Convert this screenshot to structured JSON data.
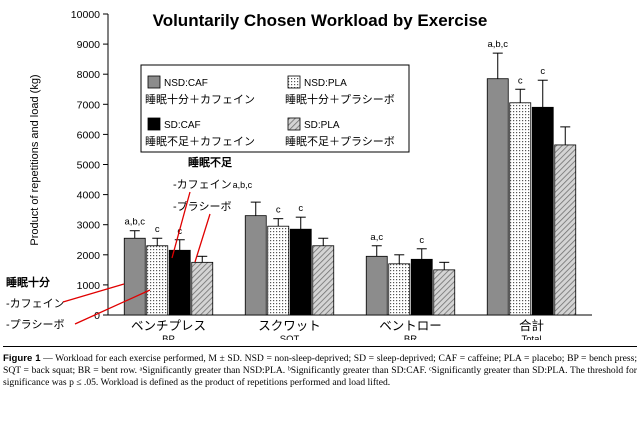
{
  "chart_data": {
    "type": "bar",
    "title": "Voluntarily Chosen Workload by Exercise",
    "ylabel": "Product of repetitions and load (kg)",
    "xlabel": "",
    "ylim": [
      0,
      10000
    ],
    "yticks": [
      0,
      1000,
      2000,
      3000,
      4000,
      5000,
      6000,
      7000,
      8000,
      9000,
      10000
    ],
    "categories": [
      {
        "jp": "ベンチプレス",
        "en": "BP"
      },
      {
        "jp": "スクワット",
        "en": "SQT"
      },
      {
        "jp": "ベントロー",
        "en": "BR"
      },
      {
        "jp": "合計",
        "en": "Total"
      }
    ],
    "series": [
      {
        "name": "NSD:CAF",
        "jp": "睡眠十分＋カフェイン",
        "color": "#8c8c8c",
        "pattern": "solid",
        "values": [
          2550,
          3300,
          1950,
          7850
        ],
        "errors": [
          250,
          450,
          350,
          850
        ]
      },
      {
        "name": "NSD:PLA",
        "jp": "睡眠十分＋プラシーボ",
        "color": "#ffffff",
        "pattern": "dots",
        "values": [
          2300,
          2950,
          1700,
          7050
        ],
        "errors": [
          250,
          250,
          300,
          450
        ]
      },
      {
        "name": "SD:CAF",
        "jp": "睡眠不足＋カフェイン",
        "color": "#000000",
        "pattern": "solid",
        "values": [
          2150,
          2850,
          1850,
          6900
        ],
        "errors": [
          350,
          400,
          350,
          900
        ]
      },
      {
        "name": "SD:PLA",
        "jp": "睡眠不足＋プラシーボ",
        "color": "#bdbdbd",
        "pattern": "hatch",
        "values": [
          1750,
          2300,
          1500,
          5650
        ],
        "errors": [
          200,
          250,
          250,
          600
        ]
      }
    ],
    "significance": [
      {
        "category": 0,
        "series": 0,
        "label": "a,b,c"
      },
      {
        "category": 0,
        "series": 1,
        "label": "c"
      },
      {
        "category": 0,
        "series": 2,
        "label": "c"
      },
      {
        "category": 1,
        "series": 1,
        "label": "c"
      },
      {
        "category": 1,
        "series": 2,
        "label": "c"
      },
      {
        "category": 2,
        "series": 0,
        "label": "a,c"
      },
      {
        "category": 2,
        "series": 2,
        "label": "c"
      },
      {
        "category": 3,
        "series": 0,
        "label": "a,b,c"
      },
      {
        "category": 3,
        "series": 1,
        "label": "c"
      },
      {
        "category": 3,
        "series": 2,
        "label": "c"
      }
    ],
    "annotations": {
      "sd_heading": "睡眠不足",
      "sd_caf": "-カフェイン",
      "sd_caf_sig": "a,b,c",
      "sd_pla": "-プラシーボ",
      "nsd_heading": "睡眠十分",
      "nsd_caf": "-カフェイン",
      "nsd_pla": "-プラシーボ"
    }
  },
  "caption": {
    "label": "Figure 1",
    "text": " — Workload for each exercise performed, M ± SD. NSD = non-sleep-deprived; SD = sleep-deprived; CAF = caffeine; PLA = placebo; BP = bench press; SQT = back squat; BR = bent row. ᵃSignificantly greater than NSD:PLA. ᵇSignificantly greater than SD:CAF. ᶜSignificantly greater than SD:PLA. The threshold for significance was p ≤ .05. Workload is defined as the product of repetitions performed and load lifted."
  }
}
